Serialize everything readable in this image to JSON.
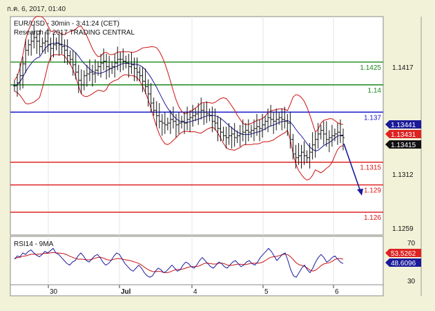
{
  "window": {
    "date_stamp": "ก.ค. 6, 2017, 01:40"
  },
  "chart_data": [
    {
      "type": "candlestick",
      "title": "EUR/USD - 30min - 3:41:24 (CET)",
      "subtitle": "Research © 2017 TRADING CENTRAL",
      "x_ticks": [
        "30",
        "Jul",
        "4",
        "5",
        "6"
      ],
      "y_ticks": [
        "1.1417",
        "1.1312",
        "1.1259"
      ],
      "ylim": [
        1.1235,
        1.1475
      ],
      "levels": [
        {
          "label": "1.1425",
          "value": 1.1425,
          "color": "#1a8a1a"
        },
        {
          "label": "1.14",
          "value": 1.14,
          "color": "#1a8a1a"
        },
        {
          "label": "1.137",
          "value": 1.137,
          "color": "#1a1acc"
        },
        {
          "label": "1.1315",
          "value": 1.1315,
          "color": "#dd1111"
        },
        {
          "label": "1.129",
          "value": 1.129,
          "color": "#dd1111"
        },
        {
          "label": "1.126",
          "value": 1.126,
          "color": "#dd1111"
        }
      ],
      "price_badges": [
        {
          "label": "1.13441",
          "value": 1.13441,
          "color": "#1a1a99"
        },
        {
          "label": "1.13431",
          "value": 1.13431,
          "color": "#dd2222"
        },
        {
          "label": "1.13415",
          "value": 1.13415,
          "color": "#111111"
        }
      ],
      "closes": [
        1.1399,
        1.1402,
        1.141,
        1.1423,
        1.1438,
        1.1444,
        1.1448,
        1.1452,
        1.1448,
        1.1442,
        1.1446,
        1.1448,
        1.1444,
        1.144,
        1.1444,
        1.1446,
        1.1444,
        1.1442,
        1.1438,
        1.1432,
        1.1428,
        1.1422,
        1.1414,
        1.1405,
        1.14,
        1.141,
        1.1412,
        1.1414,
        1.1412,
        1.1416,
        1.142,
        1.1424,
        1.1426,
        1.142,
        1.1418,
        1.142,
        1.1424,
        1.1428,
        1.1428,
        1.1426,
        1.1424,
        1.142,
        1.1422,
        1.1418,
        1.1414,
        1.141,
        1.1404,
        1.1398,
        1.139,
        1.138,
        1.1372,
        1.1366,
        1.136,
        1.1358,
        1.1356,
        1.1358,
        1.1362,
        1.136,
        1.1356,
        1.1358,
        1.136,
        1.1358,
        1.1362,
        1.1364,
        1.1366,
        1.1368,
        1.137,
        1.1372,
        1.137,
        1.1368,
        1.1366,
        1.136,
        1.1358,
        1.1352,
        1.1348,
        1.1344,
        1.1342,
        1.1344,
        1.1346,
        1.1342,
        1.1344,
        1.1346,
        1.1348,
        1.135,
        1.1348,
        1.135,
        1.1352,
        1.1354,
        1.1352,
        1.1356,
        1.136,
        1.1364,
        1.1362,
        1.136,
        1.1362,
        1.1364,
        1.1362,
        1.136,
        1.1358,
        1.134,
        1.1324,
        1.132,
        1.1322,
        1.1326,
        1.1322,
        1.132,
        1.1326,
        1.1334,
        1.134,
        1.1346,
        1.135,
        1.1346,
        1.134,
        1.1342,
        1.1344,
        1.1346,
        1.1348,
        1.1344,
        1.1342
      ],
      "rsi": {
        "label": "RSI14 - 9MA",
        "y_ticks": [
          "70",
          "30"
        ],
        "ylim": [
          20,
          80
        ],
        "badges": [
          {
            "label": "53.5262",
            "value": 53.5262,
            "color": "#dd2222"
          },
          {
            "label": "48.6096",
            "value": 48.6096,
            "color": "#1a1a99"
          }
        ],
        "values": [
          52,
          56,
          55,
          60,
          58,
          62,
          64,
          60,
          57,
          55,
          58,
          62,
          60,
          63,
          66,
          60,
          58,
          54,
          50,
          46,
          44,
          48,
          50,
          56,
          60,
          56,
          50,
          48,
          52,
          56,
          58,
          54,
          48,
          44,
          46,
          50,
          56,
          60,
          58,
          52,
          46,
          42,
          38,
          36,
          40,
          44,
          40,
          34,
          30,
          28,
          30,
          36,
          40,
          38,
          34,
          36,
          40,
          44,
          40,
          36,
          38,
          44,
          48,
          46,
          42,
          40,
          44,
          50,
          54,
          50,
          46,
          42,
          40,
          44,
          48,
          46,
          42,
          40,
          44,
          48,
          50,
          46,
          42,
          44,
          48,
          50,
          46,
          44,
          48,
          54,
          58,
          62,
          66,
          62,
          56,
          50,
          54,
          58,
          60,
          50,
          38,
          30,
          28,
          34,
          40,
          44,
          38,
          34,
          40,
          48,
          54,
          58,
          54,
          48,
          50,
          54,
          56,
          52,
          48,
          46
        ]
      }
    }
  ]
}
